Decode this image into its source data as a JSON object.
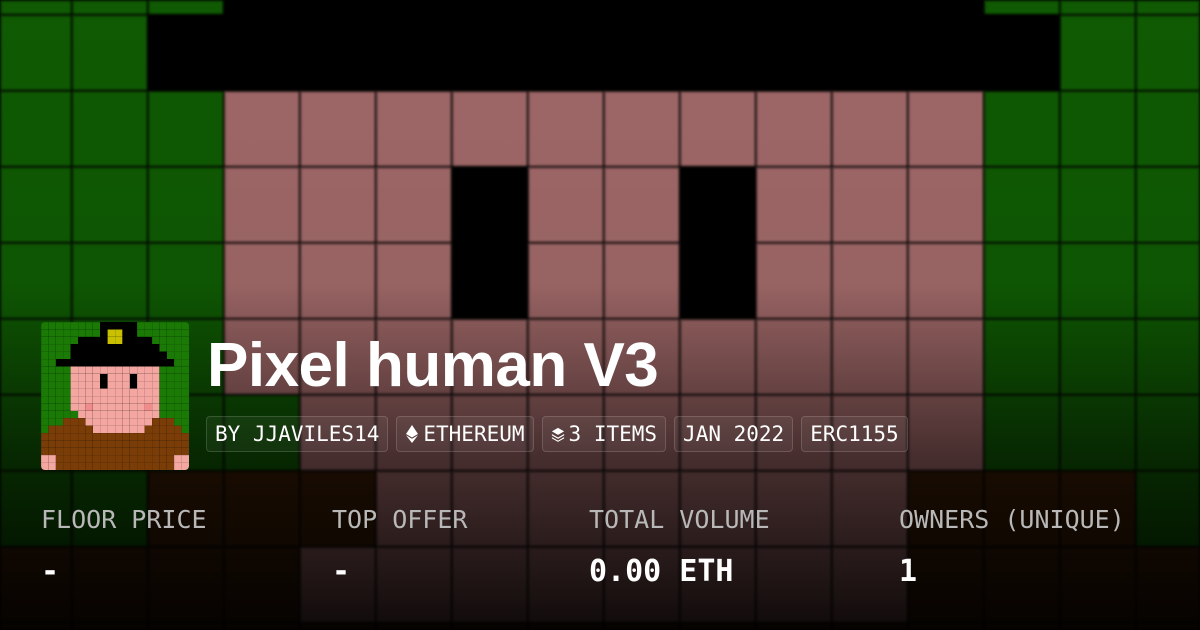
{
  "collection": {
    "title": "Pixel human V3",
    "badges": [
      {
        "label": "BY JJAVILES14",
        "icon": null
      },
      {
        "label": "ETHEREUM",
        "icon": "ethereum-icon"
      },
      {
        "label": "3 ITEMS",
        "icon": "layers-icon"
      },
      {
        "label": "JAN 2022",
        "icon": null
      },
      {
        "label": "ERC1155",
        "icon": null
      }
    ]
  },
  "stats": [
    {
      "label": "FLOOR PRICE",
      "value": "-"
    },
    {
      "label": "TOP OFFER",
      "value": "-"
    },
    {
      "label": "TOTAL VOLUME",
      "value": "0.00 ETH"
    },
    {
      "label": "OWNERS (UNIQUE)",
      "value": "1"
    }
  ],
  "colors": {
    "green": "#1a7a05",
    "black": "#000000",
    "pink": "#f4a6a0",
    "brown": "#7a3d08",
    "yellow": "#c8c000"
  }
}
